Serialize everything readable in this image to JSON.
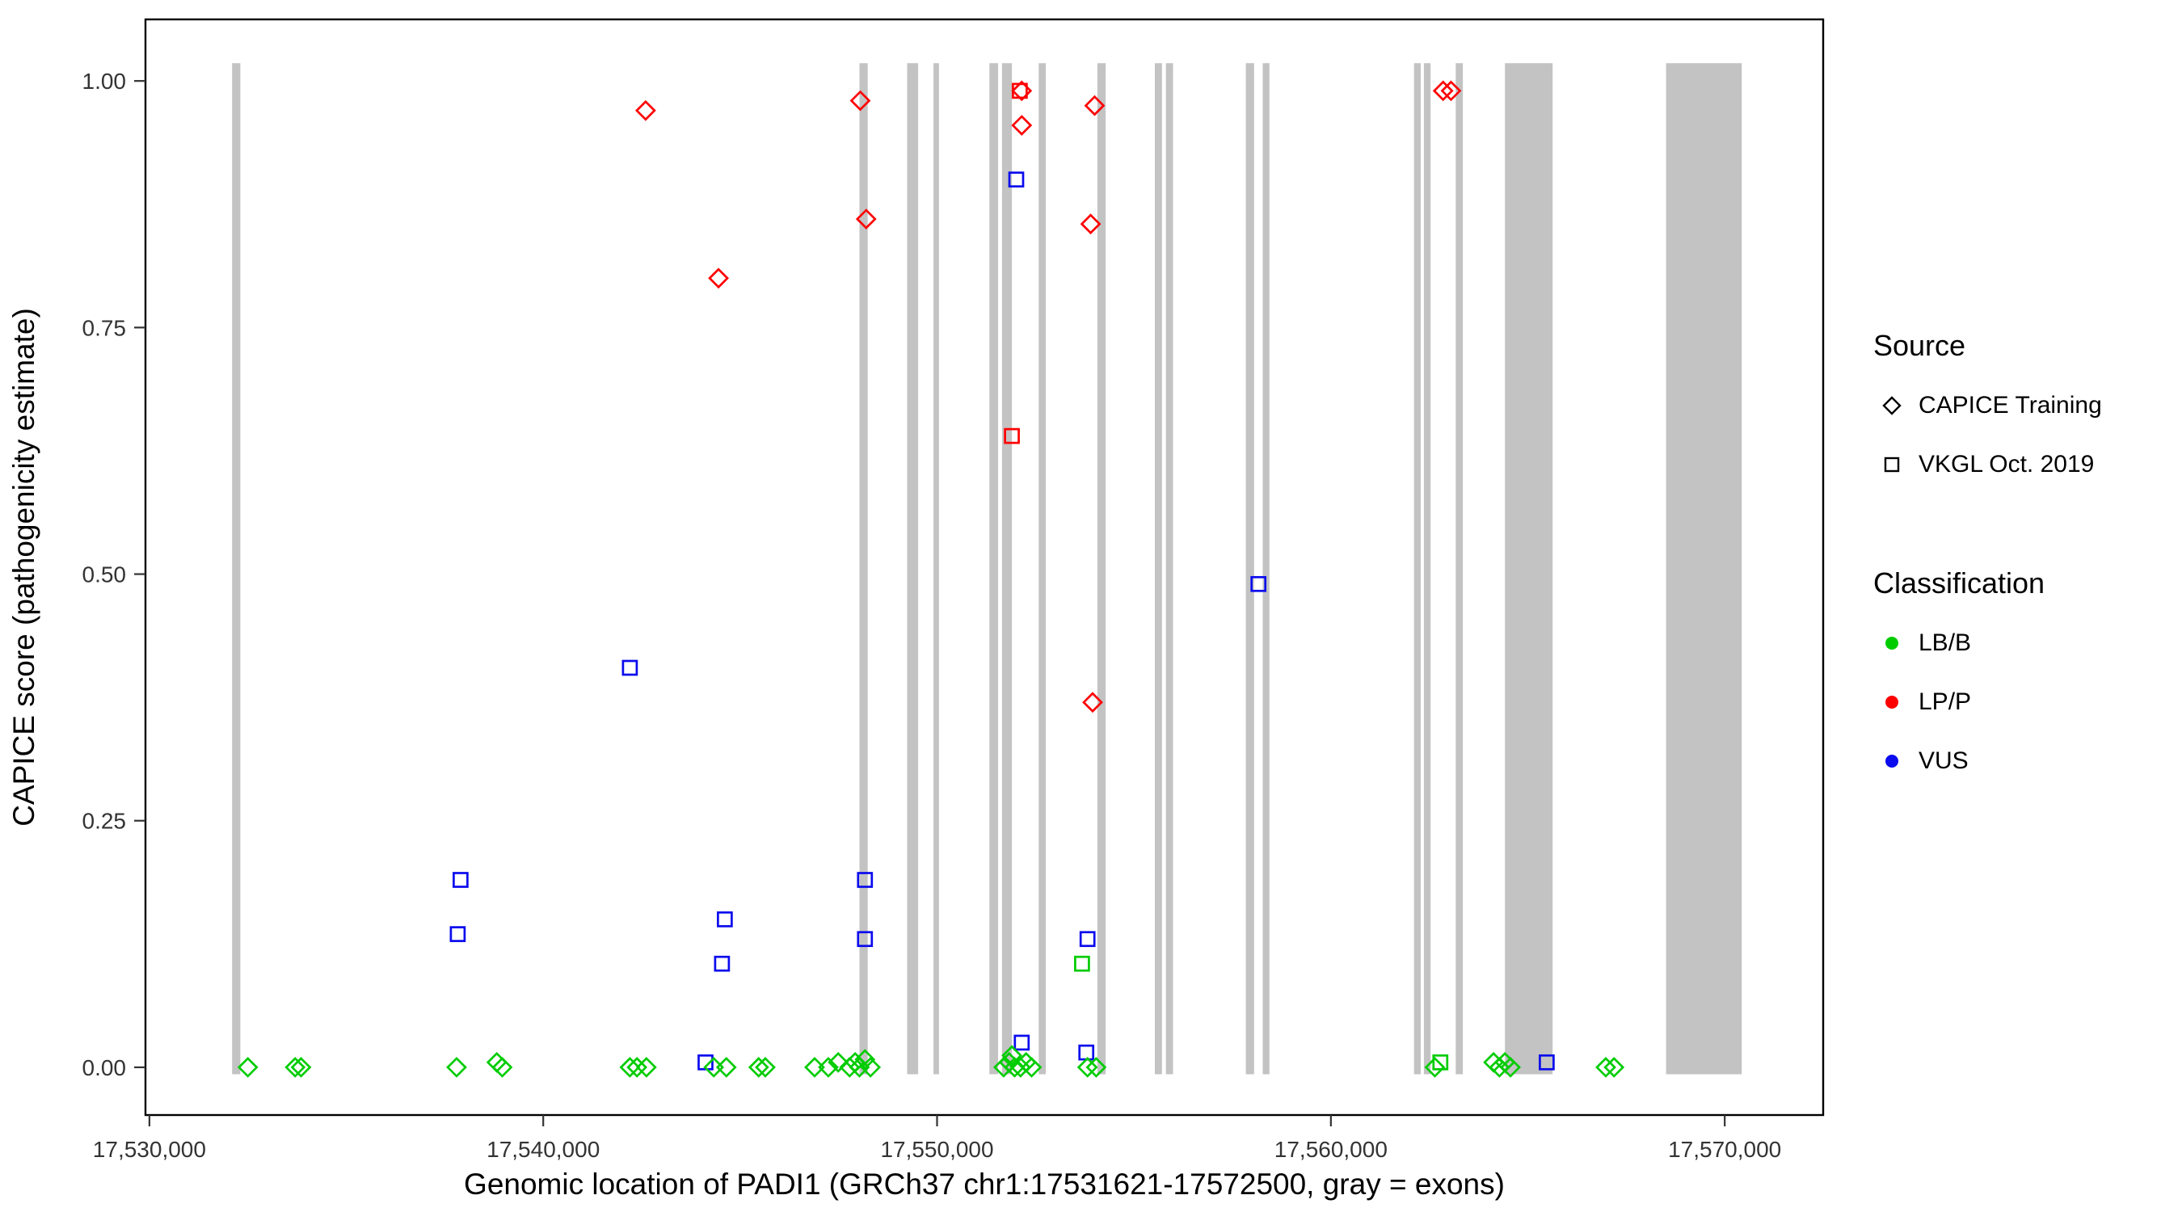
{
  "chart_data": {
    "type": "scatter",
    "title": "",
    "xlabel": "Genomic location of PADI1 (GRCh37 chr1:17531621-17572500, gray = exons)",
    "ylabel": "CAPICE score (pathogenicity estimate)",
    "xlim": [
      17529900,
      17572500
    ],
    "ylim": [
      0,
      1
    ],
    "ylim_expanded": [
      -0.0484,
      1.0624
    ],
    "grid": "off",
    "legend_position": "right",
    "x_ticks": [
      {
        "value": 17530000,
        "label": "17,530,000"
      },
      {
        "value": 17540000,
        "label": "17,540,000"
      },
      {
        "value": 17550000,
        "label": "17,550,000"
      },
      {
        "value": 17560000,
        "label": "17,560,000"
      },
      {
        "value": 17570000,
        "label": "17,570,000"
      }
    ],
    "y_ticks": [
      {
        "value": 0.0,
        "label": "0.00"
      },
      {
        "value": 0.25,
        "label": "0.25"
      },
      {
        "value": 0.5,
        "label": "0.50"
      },
      {
        "value": 0.75,
        "label": "0.75"
      },
      {
        "value": 1.0,
        "label": "1.00"
      }
    ],
    "colors": {
      "LB/B": "#00CC00",
      "LP/P": "#FF0000",
      "VUS": "#0B0BEE",
      "exon": "#C3C3C3"
    },
    "legend": {
      "source": {
        "title": "Source",
        "items": [
          {
            "shape": "diamond",
            "label": "CAPICE Training"
          },
          {
            "shape": "square",
            "label": "VKGL Oct. 2019"
          }
        ]
      },
      "classification": {
        "title": "Classification",
        "items": [
          {
            "color_key": "LB/B",
            "label": "LB/B"
          },
          {
            "color_key": "LP/P",
            "label": "LP/P"
          },
          {
            "color_key": "VUS",
            "label": "VUS"
          }
        ]
      }
    },
    "exons": [
      [
        17532100,
        17532310
      ],
      [
        17548030,
        17548240
      ],
      [
        17549240,
        17549520
      ],
      [
        17549910,
        17550050
      ],
      [
        17551330,
        17551550
      ],
      [
        17551650,
        17551900
      ],
      [
        17552580,
        17552760
      ],
      [
        17554070,
        17554280
      ],
      [
        17555530,
        17555710
      ],
      [
        17555810,
        17555990
      ],
      [
        17557840,
        17558050
      ],
      [
        17558270,
        17558440
      ],
      [
        17562110,
        17562280
      ],
      [
        17562360,
        17562530
      ],
      [
        17563170,
        17563350
      ],
      [
        17564420,
        17565630
      ],
      [
        17568510,
        17570430
      ]
    ],
    "points": [
      {
        "source": "CAPICE Training",
        "cls": "LP/P",
        "x": 17542600,
        "y": 0.97
      },
      {
        "source": "CAPICE Training",
        "cls": "LP/P",
        "x": 17544450,
        "y": 0.8
      },
      {
        "source": "CAPICE Training",
        "cls": "LP/P",
        "x": 17548050,
        "y": 0.98
      },
      {
        "source": "CAPICE Training",
        "cls": "LP/P",
        "x": 17548200,
        "y": 0.86
      },
      {
        "source": "CAPICE Training",
        "cls": "LP/P",
        "x": 17552150,
        "y": 0.99
      },
      {
        "source": "CAPICE Training",
        "cls": "LP/P",
        "x": 17552150,
        "y": 0.955
      },
      {
        "source": "CAPICE Training",
        "cls": "LP/P",
        "x": 17553900,
        "y": 0.855
      },
      {
        "source": "CAPICE Training",
        "cls": "LP/P",
        "x": 17554000,
        "y": 0.975
      },
      {
        "source": "CAPICE Training",
        "cls": "LP/P",
        "x": 17553950,
        "y": 0.37
      },
      {
        "source": "CAPICE Training",
        "cls": "LP/P",
        "x": 17562850,
        "y": 0.99
      },
      {
        "source": "CAPICE Training",
        "cls": "LP/P",
        "x": 17563050,
        "y": 0.99
      },
      {
        "source": "VKGL Oct. 2019",
        "cls": "LP/P",
        "x": 17552100,
        "y": 0.99
      },
      {
        "source": "VKGL Oct. 2019",
        "cls": "LP/P",
        "x": 17551900,
        "y": 0.64
      },
      {
        "source": "VKGL Oct. 2019",
        "cls": "VUS",
        "x": 17537900,
        "y": 0.19
      },
      {
        "source": "VKGL Oct. 2019",
        "cls": "VUS",
        "x": 17537830,
        "y": 0.135
      },
      {
        "source": "VKGL Oct. 2019",
        "cls": "VUS",
        "x": 17542200,
        "y": 0.405
      },
      {
        "source": "VKGL Oct. 2019",
        "cls": "VUS",
        "x": 17544610,
        "y": 0.15
      },
      {
        "source": "VKGL Oct. 2019",
        "cls": "VUS",
        "x": 17544540,
        "y": 0.105
      },
      {
        "source": "VKGL Oct. 2019",
        "cls": "VUS",
        "x": 17548170,
        "y": 0.19
      },
      {
        "source": "VKGL Oct. 2019",
        "cls": "VUS",
        "x": 17548170,
        "y": 0.13
      },
      {
        "source": "VKGL Oct. 2019",
        "cls": "VUS",
        "x": 17552010,
        "y": 0.9
      },
      {
        "source": "VKGL Oct. 2019",
        "cls": "VUS",
        "x": 17552150,
        "y": 0.025
      },
      {
        "source": "VKGL Oct. 2019",
        "cls": "VUS",
        "x": 17553820,
        "y": 0.13
      },
      {
        "source": "VKGL Oct. 2019",
        "cls": "VUS",
        "x": 17558160,
        "y": 0.49
      },
      {
        "source": "VKGL Oct. 2019",
        "cls": "VUS",
        "x": 17544120,
        "y": 0.005
      },
      {
        "source": "VKGL Oct. 2019",
        "cls": "VUS",
        "x": 17553790,
        "y": 0.015
      },
      {
        "source": "VKGL Oct. 2019",
        "cls": "VUS",
        "x": 17565480,
        "y": 0.005
      },
      {
        "source": "VKGL Oct. 2019",
        "cls": "LB/B",
        "x": 17553680,
        "y": 0.105
      },
      {
        "source": "VKGL Oct. 2019",
        "cls": "LB/B",
        "x": 17562780,
        "y": 0.005
      },
      {
        "source": "CAPICE Training",
        "cls": "LB/B",
        "x": 17532500,
        "y": 0.0
      },
      {
        "source": "CAPICE Training",
        "cls": "LB/B",
        "x": 17533700,
        "y": 0.0
      },
      {
        "source": "CAPICE Training",
        "cls": "LB/B",
        "x": 17533850,
        "y": 0.0
      },
      {
        "source": "CAPICE Training",
        "cls": "LB/B",
        "x": 17537800,
        "y": 0.0
      },
      {
        "source": "CAPICE Training",
        "cls": "LB/B",
        "x": 17538820,
        "y": 0.005
      },
      {
        "source": "CAPICE Training",
        "cls": "LB/B",
        "x": 17538960,
        "y": 0.0
      },
      {
        "source": "CAPICE Training",
        "cls": "LB/B",
        "x": 17542200,
        "y": 0.0
      },
      {
        "source": "CAPICE Training",
        "cls": "LB/B",
        "x": 17542380,
        "y": 0.0
      },
      {
        "source": "CAPICE Training",
        "cls": "LB/B",
        "x": 17542620,
        "y": 0.0
      },
      {
        "source": "CAPICE Training",
        "cls": "LB/B",
        "x": 17544330,
        "y": 0.0
      },
      {
        "source": "CAPICE Training",
        "cls": "LB/B",
        "x": 17544650,
        "y": 0.0
      },
      {
        "source": "CAPICE Training",
        "cls": "LB/B",
        "x": 17545470,
        "y": 0.0
      },
      {
        "source": "CAPICE Training",
        "cls": "LB/B",
        "x": 17545640,
        "y": 0.0
      },
      {
        "source": "CAPICE Training",
        "cls": "LB/B",
        "x": 17546890,
        "y": 0.0
      },
      {
        "source": "CAPICE Training",
        "cls": "LB/B",
        "x": 17547240,
        "y": 0.0
      },
      {
        "source": "CAPICE Training",
        "cls": "LB/B",
        "x": 17547490,
        "y": 0.005
      },
      {
        "source": "CAPICE Training",
        "cls": "LB/B",
        "x": 17547780,
        "y": 0.0
      },
      {
        "source": "CAPICE Training",
        "cls": "LB/B",
        "x": 17547920,
        "y": 0.005
      },
      {
        "source": "CAPICE Training",
        "cls": "LB/B",
        "x": 17548030,
        "y": 0.0
      },
      {
        "source": "CAPICE Training",
        "cls": "LB/B",
        "x": 17548170,
        "y": 0.008
      },
      {
        "source": "CAPICE Training",
        "cls": "LB/B",
        "x": 17548310,
        "y": 0.0
      },
      {
        "source": "CAPICE Training",
        "cls": "LB/B",
        "x": 17551690,
        "y": 0.0
      },
      {
        "source": "CAPICE Training",
        "cls": "LB/B",
        "x": 17551830,
        "y": 0.005
      },
      {
        "source": "CAPICE Training",
        "cls": "LB/B",
        "x": 17551900,
        "y": 0.012
      },
      {
        "source": "CAPICE Training",
        "cls": "LB/B",
        "x": 17551970,
        "y": 0.0
      },
      {
        "source": "CAPICE Training",
        "cls": "LB/B",
        "x": 17552120,
        "y": 0.0
      },
      {
        "source": "CAPICE Training",
        "cls": "LB/B",
        "x": 17552260,
        "y": 0.005
      },
      {
        "source": "CAPICE Training",
        "cls": "LB/B",
        "x": 17552400,
        "y": 0.0
      },
      {
        "source": "CAPICE Training",
        "cls": "LB/B",
        "x": 17553820,
        "y": 0.0
      },
      {
        "source": "CAPICE Training",
        "cls": "LB/B",
        "x": 17554040,
        "y": 0.0
      },
      {
        "source": "CAPICE Training",
        "cls": "LB/B",
        "x": 17562640,
        "y": 0.0
      },
      {
        "source": "CAPICE Training",
        "cls": "LB/B",
        "x": 17564130,
        "y": 0.005
      },
      {
        "source": "CAPICE Training",
        "cls": "LB/B",
        "x": 17564280,
        "y": 0.0
      },
      {
        "source": "CAPICE Training",
        "cls": "LB/B",
        "x": 17564420,
        "y": 0.005
      },
      {
        "source": "CAPICE Training",
        "cls": "LB/B",
        "x": 17564560,
        "y": 0.0
      },
      {
        "source": "CAPICE Training",
        "cls": "LB/B",
        "x": 17566980,
        "y": 0.0
      },
      {
        "source": "CAPICE Training",
        "cls": "LB/B",
        "x": 17567190,
        "y": 0.0
      }
    ]
  }
}
